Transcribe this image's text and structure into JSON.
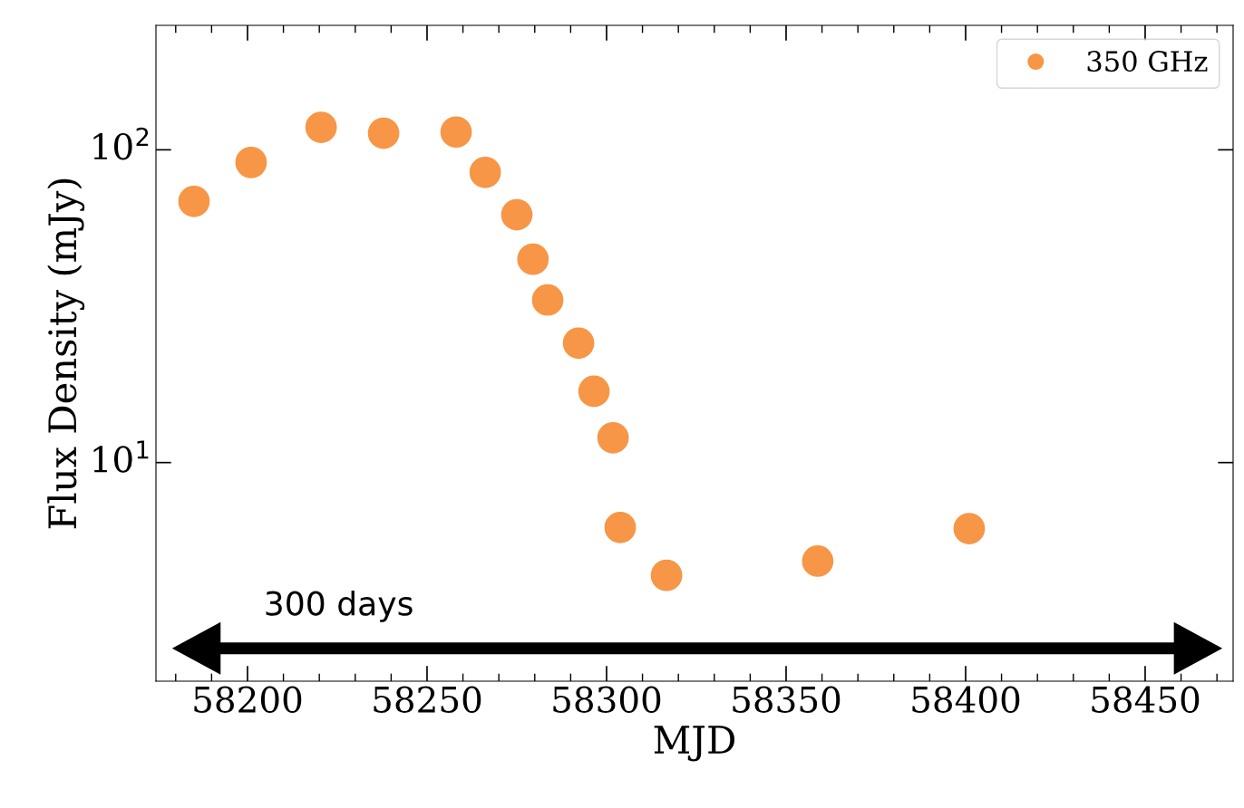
{
  "chart_data": {
    "type": "scatter",
    "xlabel": "MJD",
    "ylabel": "Flux Density (mJy)",
    "log": "y",
    "legend": "top right",
    "marker": "circle",
    "grid": false,
    "xlim": [
      58174.5,
      58474.5
    ],
    "xticks": [
      58200,
      58250,
      58300,
      58350,
      58400,
      58450
    ],
    "ylim": [
      2,
      250
    ],
    "yticks": [
      {
        "value": 10,
        "label": "10$^{1}$"
      },
      {
        "value": 100,
        "label": "10$^{2}$"
      }
    ],
    "annotations": [
      "300 days"
    ],
    "series": [
      {
        "name": "350 GHz",
        "color": "#f79646",
        "x": [
          58185.1,
          58201,
          58220.5,
          58237.9,
          58258.1,
          58266.2,
          58275.0,
          58279.5,
          58283.6,
          58292.2,
          58296.5,
          58301.8,
          58303.8,
          58316.7,
          58358.8,
          58401.0
        ],
        "values": [
          68.4,
          91.1,
          118,
          113,
          114,
          84.7,
          62,
          44.7,
          33.1,
          24.1,
          16.9,
          12.0,
          6.2,
          4.36,
          4.84,
          6.15
        ]
      }
    ]
  }
}
